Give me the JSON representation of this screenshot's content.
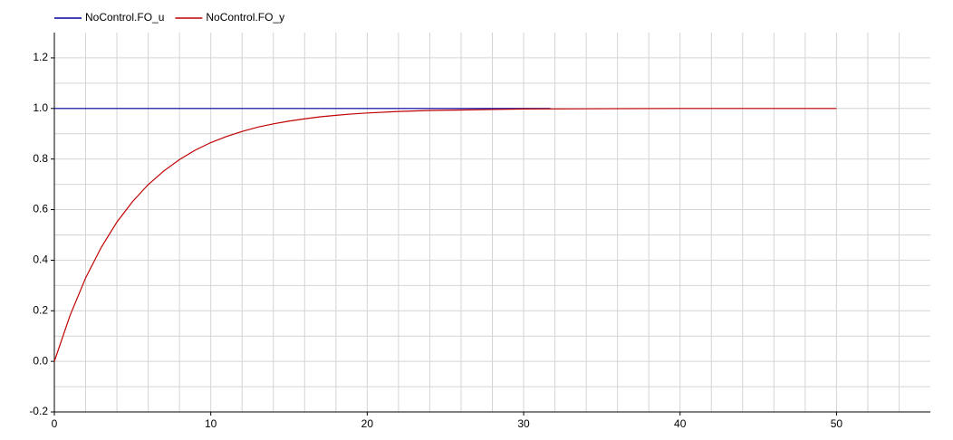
{
  "chart_data": {
    "type": "line",
    "series": [
      {
        "name": "NoControl.FO_u",
        "color": "#0000a0",
        "x": [
          0,
          31.7
        ],
        "values": [
          1,
          1
        ]
      },
      {
        "name": "NoControl.FO_y",
        "color": "#c00000",
        "x": [
          0,
          1,
          2,
          3,
          4,
          5,
          6,
          7,
          8,
          9,
          10,
          11,
          12,
          13,
          14,
          15,
          16,
          17,
          18,
          19,
          20,
          22,
          24,
          26,
          28,
          30,
          35,
          40,
          45,
          50
        ],
        "values": [
          0,
          0.181,
          0.33,
          0.451,
          0.551,
          0.632,
          0.699,
          0.753,
          0.798,
          0.835,
          0.865,
          0.889,
          0.909,
          0.926,
          0.939,
          0.95,
          0.959,
          0.967,
          0.973,
          0.978,
          0.982,
          0.988,
          0.992,
          0.994,
          0.996,
          0.998,
          0.999,
          1,
          1,
          1
        ]
      }
    ],
    "xlim": [
      0,
      56
    ],
    "ylim": [
      -0.2,
      1.3
    ],
    "xticks": [
      0,
      10,
      20,
      30,
      40,
      50
    ],
    "yticks": [
      -0.2,
      {
        "value": 0,
        "label": "0.0"
      },
      0.2,
      0.4,
      0.6,
      0.8,
      {
        "value": 1,
        "label": "1.0"
      },
      1.2
    ],
    "xminor": [
      2,
      4,
      6,
      8,
      12,
      14,
      16,
      18,
      22,
      24,
      26,
      28,
      32,
      34,
      36,
      38,
      42,
      44,
      46,
      48,
      52,
      54
    ],
    "yminor": [
      -0.1,
      0.1,
      0.3,
      0.5,
      0.7,
      0.9,
      1.1
    ],
    "grid": true,
    "legend": "top"
  }
}
